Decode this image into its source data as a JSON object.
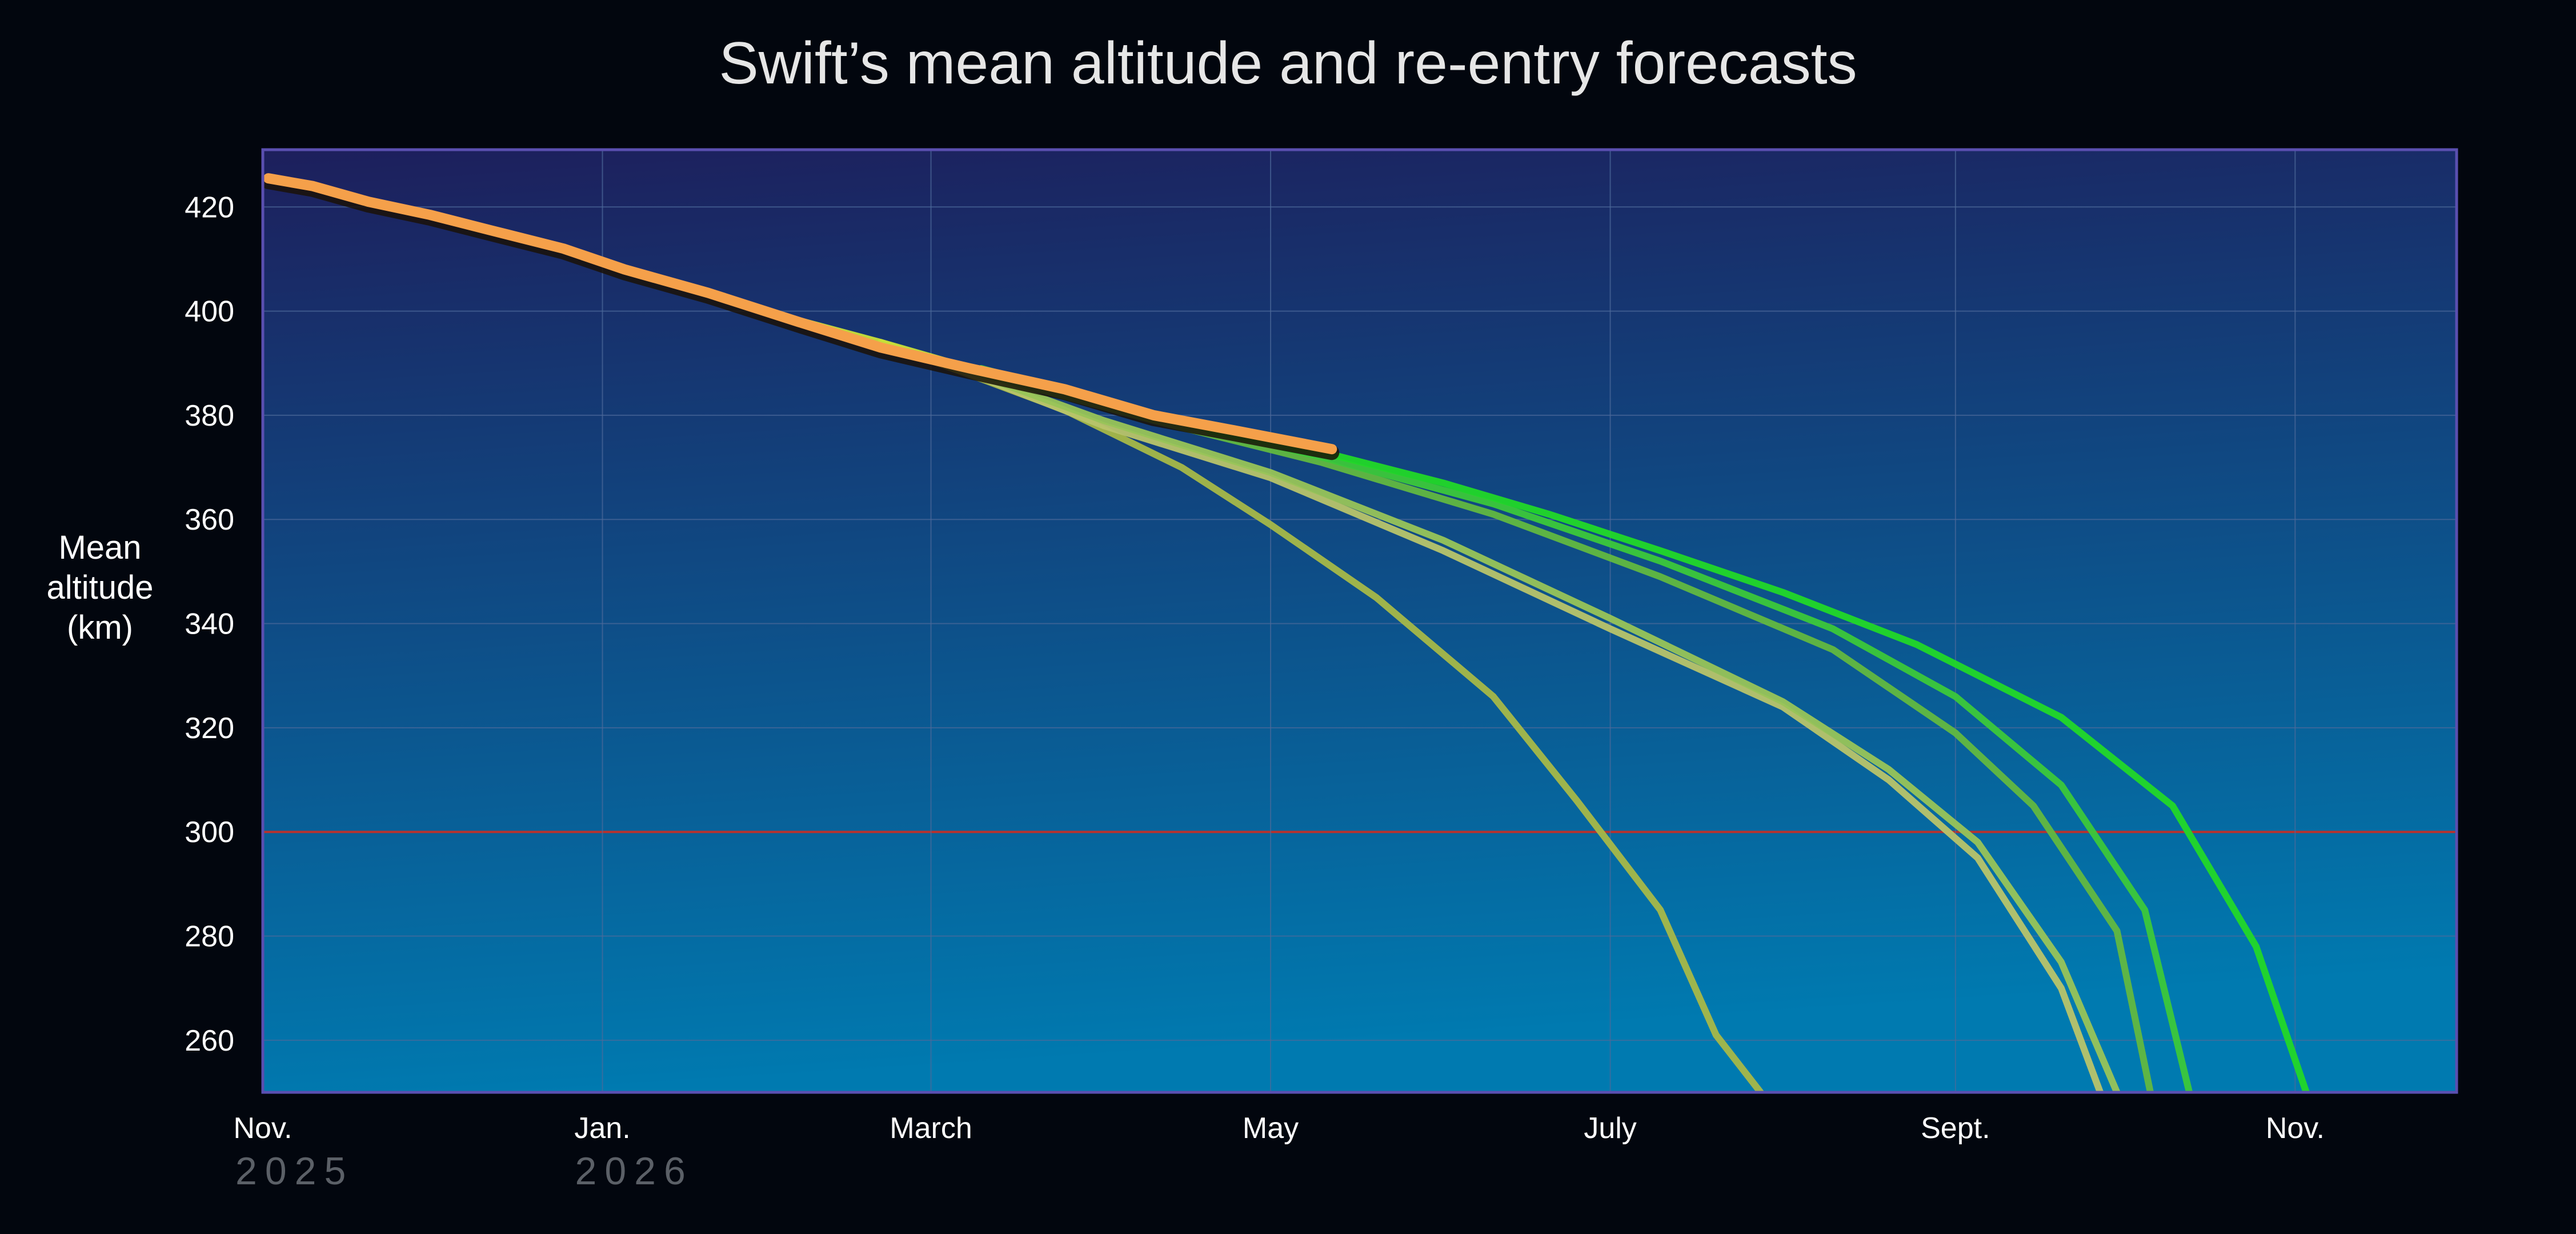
{
  "chart_data": {
    "type": "line",
    "title": "Swift’s mean altitude and re-entry forecasts",
    "ylabel": [
      "Mean",
      "altitude",
      "(km)"
    ],
    "xlabel": "",
    "ylim": [
      250,
      431
    ],
    "xlim": [
      "2025-11-01",
      "2026-11-30"
    ],
    "grid": true,
    "legend": "none",
    "y_ticks": [
      420,
      400,
      380,
      360,
      340,
      320,
      300,
      280,
      260
    ],
    "highlight_y": 300,
    "x_ticks": [
      {
        "label": "Nov.",
        "date": "2025-11-01"
      },
      {
        "label": "Jan.",
        "date": "2026-01-01"
      },
      {
        "label": "March",
        "date": "2026-03-01"
      },
      {
        "label": "May",
        "date": "2026-05-01"
      },
      {
        "label": "July",
        "date": "2026-07-01"
      },
      {
        "label": "Sept.",
        "date": "2026-09-01"
      },
      {
        "label": "Nov.",
        "date": "2026-11-01"
      }
    ],
    "year_labels": [
      {
        "label": "2025",
        "date": "2025-11-01"
      },
      {
        "label": "2026",
        "date": "2026-01-01"
      }
    ],
    "colors": {
      "observed": "#f5a04a",
      "highlight_line": "#b8322e",
      "highlight_tick": "#ff1a1a",
      "frame": "#5a4fb0",
      "grid": "#4d6a9a",
      "bg_top": "#1d1f5c",
      "bg_bottom": "#007ab0"
    },
    "series": [
      {
        "kind": "observed",
        "color": "#f5a04a",
        "points": [
          [
            "2025-11-02",
            425.5
          ],
          [
            "2025-11-10",
            424
          ],
          [
            "2025-11-20",
            421
          ],
          [
            "2025-12-01",
            418.5
          ],
          [
            "2025-12-12",
            415.5
          ],
          [
            "2025-12-25",
            412
          ],
          [
            "2026-01-05",
            408
          ],
          [
            "2026-01-20",
            403.5
          ],
          [
            "2026-02-05",
            398
          ],
          [
            "2026-02-20",
            393
          ],
          [
            "2026-03-08",
            389
          ],
          [
            "2026-03-25",
            385
          ],
          [
            "2026-04-10",
            380
          ],
          [
            "2026-04-25",
            377
          ],
          [
            "2026-05-12",
            373.5
          ]
        ]
      },
      {
        "kind": "forecast",
        "color": "#a6b848",
        "points": [
          [
            "2026-02-20",
            394
          ],
          [
            "2026-03-10",
            387
          ],
          [
            "2026-03-25",
            381
          ],
          [
            "2026-04-15",
            370
          ],
          [
            "2026-05-01",
            359
          ],
          [
            "2026-05-20",
            345
          ],
          [
            "2026-06-10",
            326
          ],
          [
            "2026-06-25",
            306
          ],
          [
            "2026-07-10",
            285
          ],
          [
            "2026-07-20",
            261
          ],
          [
            "2026-07-28",
            250
          ]
        ]
      },
      {
        "kind": "forecast",
        "color": "#b8c46a",
        "points": [
          [
            "2026-03-01",
            391
          ],
          [
            "2026-04-01",
            378
          ],
          [
            "2026-05-01",
            368
          ],
          [
            "2026-06-01",
            354
          ],
          [
            "2026-07-01",
            339
          ],
          [
            "2026-08-01",
            324
          ],
          [
            "2026-08-20",
            310
          ],
          [
            "2026-09-05",
            295
          ],
          [
            "2026-09-20",
            270
          ],
          [
            "2026-09-27",
            250
          ]
        ]
      },
      {
        "kind": "forecast",
        "color": "#98c458",
        "points": [
          [
            "2026-03-01",
            391
          ],
          [
            "2026-04-01",
            379
          ],
          [
            "2026-05-01",
            369
          ],
          [
            "2026-06-01",
            356
          ],
          [
            "2026-07-01",
            341
          ],
          [
            "2026-08-01",
            325
          ],
          [
            "2026-08-20",
            312
          ],
          [
            "2026-09-05",
            298
          ],
          [
            "2026-09-20",
            275
          ],
          [
            "2026-09-30",
            250
          ]
        ]
      },
      {
        "kind": "forecast",
        "color": "#62b840",
        "points": [
          [
            "2026-03-10",
            388
          ],
          [
            "2026-04-10",
            379
          ],
          [
            "2026-05-10",
            371
          ],
          [
            "2026-06-10",
            361
          ],
          [
            "2026-07-10",
            349
          ],
          [
            "2026-08-10",
            335
          ],
          [
            "2026-09-01",
            319
          ],
          [
            "2026-09-15",
            305
          ],
          [
            "2026-09-30",
            281
          ],
          [
            "2026-10-06",
            250
          ]
        ]
      },
      {
        "kind": "forecast",
        "color": "#3cc83a",
        "points": [
          [
            "2026-03-10",
            389
          ],
          [
            "2026-04-10",
            380
          ],
          [
            "2026-05-10",
            372
          ],
          [
            "2026-06-10",
            363
          ],
          [
            "2026-07-10",
            352
          ],
          [
            "2026-08-10",
            339
          ],
          [
            "2026-09-01",
            326
          ],
          [
            "2026-09-20",
            309
          ],
          [
            "2026-10-05",
            285
          ],
          [
            "2026-10-13",
            250
          ]
        ]
      },
      {
        "kind": "forecast",
        "color": "#22d828",
        "points": [
          [
            "2026-04-20",
            377
          ],
          [
            "2026-05-10",
            373
          ],
          [
            "2026-06-01",
            367
          ],
          [
            "2026-06-20",
            361
          ],
          [
            "2026-07-10",
            354
          ],
          [
            "2026-08-01",
            346
          ],
          [
            "2026-08-25",
            336
          ],
          [
            "2026-09-20",
            322
          ],
          [
            "2026-10-10",
            305
          ],
          [
            "2026-10-25",
            278
          ],
          [
            "2026-11-03",
            250
          ]
        ]
      },
      {
        "kind": "forecast",
        "color": "#c8e038",
        "points": [
          [
            "2026-01-30",
            400
          ],
          [
            "2026-02-20",
            394
          ],
          [
            "2026-03-05",
            390
          ]
        ]
      }
    ]
  }
}
